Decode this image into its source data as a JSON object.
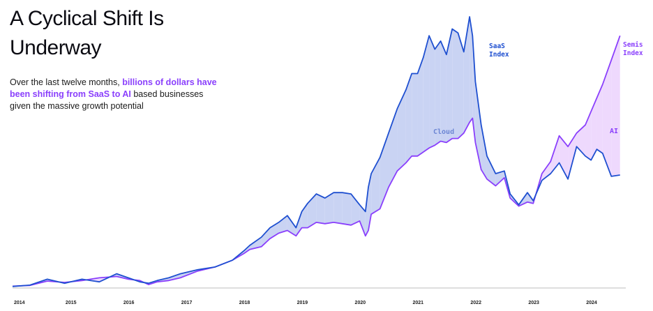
{
  "header": {
    "title": "A Cyclical Shift Is Underway",
    "subtitle_pre": "Over the last twelve months, ",
    "subtitle_highlight": "billions of dollars have been shifting from SaaS to AI",
    "subtitle_post": " based businesses given the massive growth potential"
  },
  "colors": {
    "saas": "#1e4fd0",
    "semis": "#8a3ffc",
    "cloud_fill": "#c9d3f3",
    "ai_fill": "#eed9fd"
  },
  "chart_data": {
    "type": "line",
    "title": "",
    "xlabel": "",
    "ylabel": "",
    "x_ticks": [
      "2014",
      "2015",
      "2016",
      "2017",
      "2018",
      "2019",
      "2020",
      "2021",
      "2022",
      "2023",
      "2024"
    ],
    "x_range": [
      2014.0,
      2024.6
    ],
    "y_range": [
      0,
      100
    ],
    "grid": false,
    "legend": "none",
    "x": [
      2014.0,
      2014.3,
      2014.6,
      2014.9,
      2015.2,
      2015.5,
      2015.8,
      2016.0,
      2016.2,
      2016.35,
      2016.5,
      2016.7,
      2016.9,
      2017.2,
      2017.5,
      2017.8,
      2018.0,
      2018.1,
      2018.3,
      2018.45,
      2018.6,
      2018.75,
      2018.9,
      2019.0,
      2019.1,
      2019.25,
      2019.4,
      2019.55,
      2019.7,
      2019.85,
      2020.0,
      2020.1,
      2020.15,
      2020.2,
      2020.35,
      2020.5,
      2020.65,
      2020.8,
      2020.9,
      2021.0,
      2021.1,
      2021.2,
      2021.3,
      2021.4,
      2021.5,
      2021.6,
      2021.7,
      2021.8,
      2021.9,
      2021.95,
      2022.0,
      2022.1,
      2022.2,
      2022.35,
      2022.5,
      2022.6,
      2022.75,
      2022.9,
      2023.0,
      2023.15,
      2023.3,
      2023.45,
      2023.6,
      2023.75,
      2023.9,
      2024.0,
      2024.1,
      2024.2,
      2024.35,
      2024.5
    ],
    "series": [
      {
        "name": "SaaS Index",
        "values": [
          0.3,
          0.8,
          3.0,
          1.5,
          3.0,
          2.0,
          5.0,
          3.5,
          2.0,
          1.5,
          2.5,
          3.5,
          5.0,
          6.5,
          7.5,
          10.0,
          13.5,
          15.5,
          18.5,
          22.0,
          24.0,
          26.5,
          22.0,
          28.0,
          31.0,
          34.5,
          33.0,
          35.0,
          35.0,
          34.5,
          30.5,
          28.0,
          37.0,
          42.0,
          48.0,
          57.0,
          66.0,
          73.0,
          79.0,
          79.0,
          85.0,
          93.0,
          88.0,
          91.0,
          86.0,
          95.5,
          94.0,
          87.0,
          100.0,
          93.0,
          76.0,
          60.0,
          48.5,
          42.0,
          43.0,
          34.5,
          30.5,
          35.0,
          32.0,
          39.5,
          42.0,
          46.0,
          40.0,
          52.0,
          48.5,
          47.0,
          51.0,
          49.5,
          41.0,
          41.5
        ]
      },
      {
        "name": "Semis Index",
        "values": [
          0.4,
          0.7,
          2.3,
          1.8,
          2.5,
          3.5,
          4.0,
          3.0,
          2.5,
          1.0,
          2.0,
          2.5,
          3.5,
          6.0,
          7.5,
          10.0,
          12.5,
          14.0,
          15.0,
          18.0,
          20.0,
          21.0,
          19.0,
          22.0,
          22.0,
          24.0,
          23.5,
          24.0,
          23.5,
          23.0,
          24.5,
          19.0,
          21.0,
          27.0,
          29.0,
          37.0,
          43.0,
          46.0,
          48.5,
          48.5,
          50.0,
          51.5,
          52.5,
          54.0,
          53.5,
          55.0,
          55.0,
          57.0,
          61.0,
          62.5,
          53.5,
          43.5,
          40.0,
          37.5,
          40.5,
          33.0,
          30.0,
          31.5,
          31.0,
          42.0,
          46.5,
          56.0,
          52.0,
          57.0,
          60.0,
          65.0,
          70.0,
          75.0,
          84.0,
          93.0
        ]
      }
    ],
    "annotations": [
      {
        "text": "SaaS",
        "text2": "Index",
        "series": "SaaS Index"
      },
      {
        "text": "Semis",
        "text2": "Index",
        "series": "Semis Index"
      },
      {
        "text": "Cloud",
        "region": "saas_above"
      },
      {
        "text": "AI",
        "region": "semis_above"
      }
    ]
  }
}
